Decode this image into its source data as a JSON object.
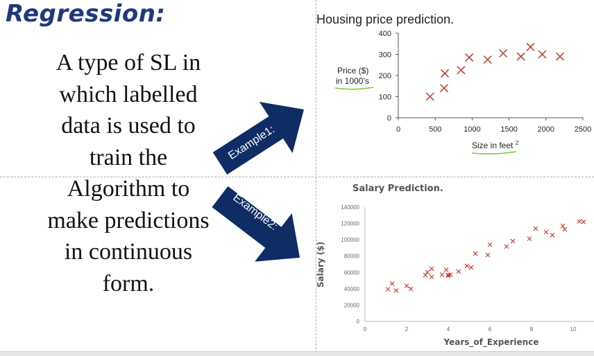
{
  "title": "Regression:",
  "description_lines": [
    "A type of SL in",
    "which labelled",
    "data is used to",
    "train the",
    "Algorithm to",
    "make predictions",
    "in continuous",
    "form."
  ],
  "arrow1_label": "Example1:",
  "arrow2_label": "Example2:",
  "colors": {
    "title": "#1f3a7a",
    "arrow": "#0f2d64",
    "marker": "#c0392b",
    "highlight": "#6ccf3a"
  },
  "chart_data": [
    {
      "type": "scatter",
      "title": "Housing price prediction.",
      "ylabel_lines": [
        "Price ($)",
        "in 1000’s"
      ],
      "xlabel_main": "Size in feet",
      "xlabel_sup": "2",
      "xlim": [
        0,
        2500
      ],
      "ylim": [
        0,
        400
      ],
      "xticks": [
        0,
        500,
        1000,
        1500,
        2000,
        2500
      ],
      "yticks": [
        0,
        100,
        200,
        300,
        400
      ],
      "grid": false,
      "x": [
        430,
        620,
        630,
        850,
        960,
        1210,
        1420,
        1660,
        1790,
        1950,
        2190
      ],
      "y": [
        100,
        140,
        210,
        225,
        285,
        275,
        305,
        290,
        335,
        300,
        290
      ]
    },
    {
      "type": "scatter",
      "title": "Salary Prediction.",
      "ylabel": "Salary ($)",
      "xlabel": "Years_of_Experience",
      "xlim": [
        0,
        11
      ],
      "ylim": [
        0,
        140000
      ],
      "xticks": [
        0,
        2,
        4,
        6,
        8,
        10
      ],
      "yticks": [
        0,
        20000,
        40000,
        60000,
        80000,
        100000,
        120000,
        140000
      ],
      "grid": false,
      "x": [
        1.1,
        1.3,
        1.5,
        2.0,
        2.2,
        2.9,
        3.0,
        3.2,
        3.2,
        3.7,
        3.9,
        4.0,
        4.0,
        4.1,
        4.5,
        4.9,
        5.1,
        5.3,
        5.9,
        6.0,
        6.8,
        7.1,
        7.9,
        8.2,
        8.7,
        9.0,
        9.5,
        9.6,
        10.3,
        10.5
      ],
      "y": [
        39343,
        46205,
        37731,
        43525,
        39891,
        56642,
        60150,
        54445,
        64445,
        57189,
        63218,
        55794,
        56957,
        57081,
        61111,
        67938,
        66029,
        83088,
        81363,
        93940,
        91738,
        98273,
        101302,
        113812,
        109431,
        105582,
        116969,
        112635,
        122391,
        121872
      ]
    }
  ]
}
